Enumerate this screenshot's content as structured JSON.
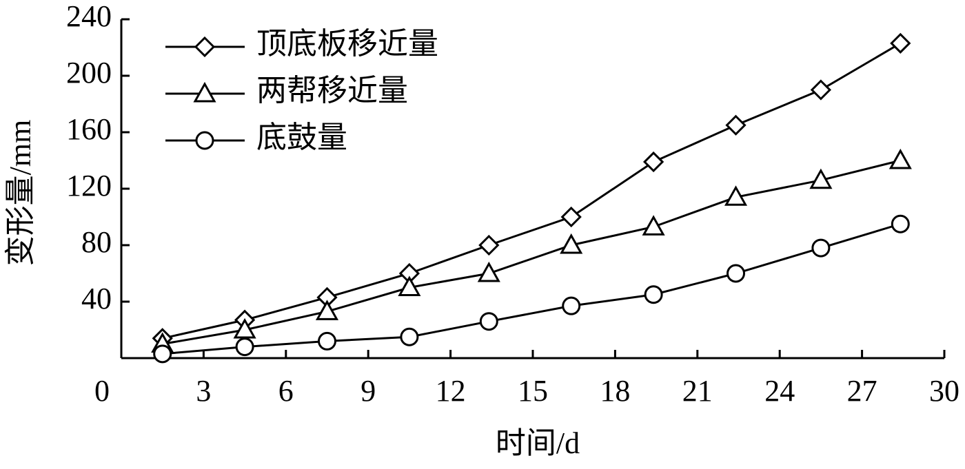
{
  "chart_data": {
    "type": "line",
    "x_label": "时间/d",
    "y_label": "变形量/mm",
    "x": [
      1.5,
      4.5,
      7.5,
      10.5,
      13.4,
      16.4,
      19.4,
      22.4,
      25.5,
      28.4
    ],
    "series": [
      {
        "name": "顶底板移近量",
        "color": "#000000",
        "marker": "diamond",
        "values": [
          14,
          27,
          43,
          60,
          80,
          100,
          139,
          165,
          190,
          223
        ]
      },
      {
        "name": "两帮移近量",
        "color": "#000000",
        "marker": "triangle",
        "values": [
          10,
          20,
          33,
          50,
          60,
          80,
          93,
          114,
          126,
          140
        ]
      },
      {
        "name": "底鼓量",
        "color": "#000000",
        "marker": "circle",
        "values": [
          3,
          8,
          12,
          15,
          26,
          37,
          45,
          60,
          78,
          95
        ]
      }
    ],
    "xlim": [
      0,
      30
    ],
    "xticks": [
      0,
      3,
      6,
      9,
      12,
      15,
      18,
      21,
      24,
      27,
      30
    ],
    "ylim": [
      0,
      240
    ],
    "yticks": [
      40,
      80,
      120,
      160,
      200,
      240
    ],
    "grid": false,
    "legend": "upper left"
  }
}
